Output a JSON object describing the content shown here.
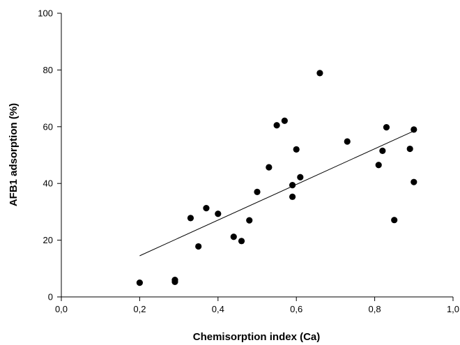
{
  "chart_data": {
    "type": "scatter",
    "title": "",
    "xlabel": "Chemisorption index (Ca)",
    "ylabel": "AFB1 adsorption  (%)",
    "xlim": [
      0.0,
      1.0
    ],
    "ylim": [
      0,
      100
    ],
    "x_ticks": [
      0.0,
      0.2,
      0.4,
      0.6,
      0.8,
      1.0
    ],
    "x_tick_labels": [
      "0,0",
      "0,2",
      "0,4",
      "0,6",
      "0,8",
      "1,0"
    ],
    "y_ticks": [
      0,
      20,
      40,
      60,
      80,
      100
    ],
    "y_tick_labels": [
      "0",
      "20",
      "40",
      "60",
      "80",
      "100"
    ],
    "grid": false,
    "legend": "none",
    "marker_color": "#000000",
    "series": [
      {
        "x": [
          0.2,
          0.29,
          0.29,
          0.33,
          0.35,
          0.37,
          0.4,
          0.44,
          0.46,
          0.48,
          0.5,
          0.53,
          0.55,
          0.57,
          0.59,
          0.59,
          0.6,
          0.61,
          0.66,
          0.73,
          0.81,
          0.82,
          0.83,
          0.85,
          0.89,
          0.9,
          0.9
        ],
        "y": [
          5.0,
          6.0,
          5.3,
          27.8,
          17.8,
          31.3,
          29.3,
          21.2,
          19.7,
          27.0,
          37.0,
          45.7,
          60.5,
          62.1,
          35.3,
          39.4,
          52.0,
          42.2,
          78.9,
          54.8,
          46.5,
          51.5,
          59.8,
          27.1,
          52.2,
          59.0,
          40.5
        ]
      }
    ],
    "trendline": {
      "type": "linear",
      "x": [
        0.2,
        0.9
      ],
      "y": [
        14.5,
        58.5
      ]
    }
  }
}
